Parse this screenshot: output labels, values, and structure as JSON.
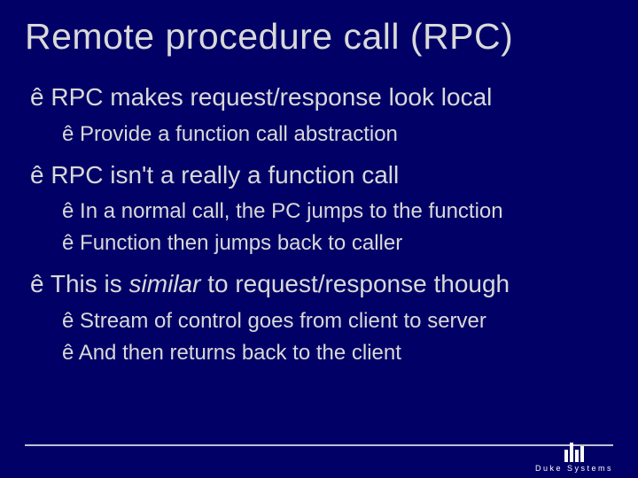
{
  "slide": {
    "background_color": "#000066",
    "text_color": "#d9d9d9",
    "title": "Remote procedure call (RPC)",
    "title_fontsize": 41,
    "bullet_glyph": "ê",
    "main_fontsize": 28,
    "sub_fontsize": 24,
    "sections": [
      {
        "main": "RPC makes request/response look local",
        "subs": [
          "Provide a function call abstraction"
        ]
      },
      {
        "main": "RPC isn't a really a function call",
        "subs": [
          "In a normal call, the PC jumps to the function",
          "Function then jumps back to caller"
        ]
      },
      {
        "main_pre": "This is ",
        "main_italic": "similar",
        "main_post": " to request/response though",
        "subs": [
          "Stream of control goes from client to server",
          "And then returns back to the client"
        ]
      }
    ],
    "footer_line_color": "#c0c0d0",
    "logo_text": "Duke Systems",
    "logo_color": "#ffffff"
  }
}
